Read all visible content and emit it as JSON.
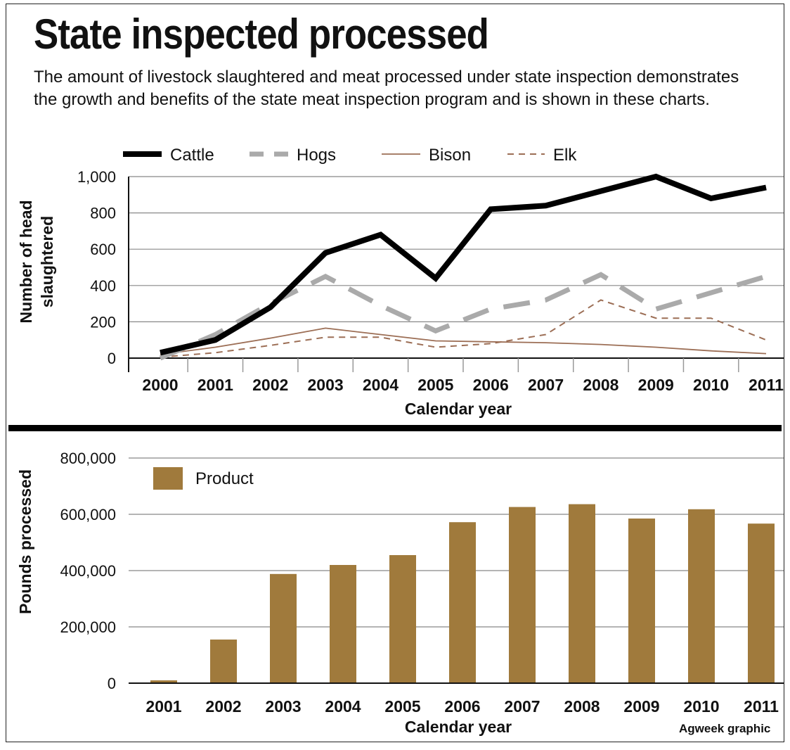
{
  "header": {
    "title": "State inspected processed",
    "subtitle": "The amount of livestock slaughtered and meat processed under state inspection demonstrates the growth and benefits of the state meat inspection program and is shown in these charts."
  },
  "credit": "Agweek graphic",
  "chart_data": [
    {
      "type": "line",
      "x": [
        "2000",
        "2001",
        "2002",
        "2003",
        "2004",
        "2005",
        "2006",
        "2007",
        "2008",
        "2009",
        "2010",
        "2011"
      ],
      "series": [
        {
          "name": "Cattle",
          "values": [
            30,
            100,
            280,
            580,
            680,
            440,
            820,
            840,
            920,
            1000,
            880,
            940
          ],
          "color": "#000000",
          "style": "solid-thick"
        },
        {
          "name": "Hogs",
          "values": [
            0,
            130,
            300,
            450,
            290,
            150,
            270,
            320,
            460,
            270,
            360,
            450
          ],
          "color": "#aaaaaa",
          "style": "dashed-thick"
        },
        {
          "name": "Bison",
          "values": [
            20,
            60,
            110,
            165,
            130,
            95,
            90,
            85,
            75,
            60,
            40,
            25
          ],
          "color": "#9c6e55",
          "style": "solid-thin"
        },
        {
          "name": "Elk",
          "values": [
            5,
            30,
            70,
            115,
            115,
            60,
            80,
            130,
            320,
            220,
            220,
            100
          ],
          "color": "#9c6e55",
          "style": "dashed-thin"
        }
      ],
      "xlabel": "Calendar year",
      "ylabel": "Number of head slaughtered",
      "ylim": [
        0,
        1000
      ],
      "yticks": [
        0,
        200,
        400,
        600,
        800,
        1000
      ],
      "ytick_labels": [
        "0",
        "200",
        "400",
        "600",
        "800",
        "1,000"
      ],
      "grid": true,
      "legend": "top"
    },
    {
      "type": "bar",
      "categories": [
        "2001",
        "2002",
        "2003",
        "2004",
        "2005",
        "2006",
        "2007",
        "2008",
        "2009",
        "2010",
        "2011"
      ],
      "series": [
        {
          "name": "Product",
          "values": [
            10000,
            155000,
            388000,
            420000,
            455000,
            572000,
            626000,
            636000,
            585000,
            618000,
            567000
          ],
          "color": "#a07a3c"
        }
      ],
      "xlabel": "Calendar year",
      "ylabel": "Pounds processed",
      "ylim": [
        0,
        800000
      ],
      "yticks": [
        0,
        200000,
        400000,
        600000,
        800000
      ],
      "ytick_labels": [
        "0",
        "200,000",
        "400,000",
        "600,000",
        "800,000"
      ],
      "grid": true,
      "legend": "top-left"
    }
  ]
}
